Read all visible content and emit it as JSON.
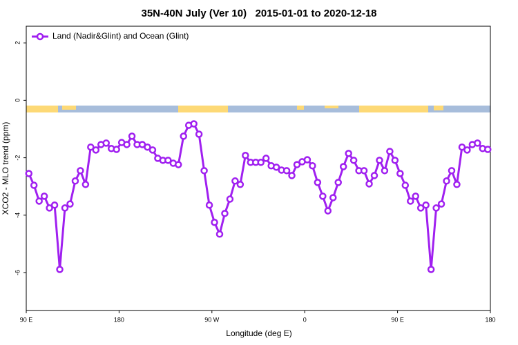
{
  "chart_data": {
    "type": "line",
    "title": "35N-40N July (Ver 10)   2015-01-01 to 2020-12-18",
    "x_label": "Longitude (deg E)",
    "y_label": "XCO2 - MLO trend (ppm)",
    "xlim": [
      90,
      540
    ],
    "ylim": [
      -7.32,
      2.58
    ],
    "xticks": [
      {
        "value": 90,
        "label": "90 E"
      },
      180,
      {
        "value": 270,
        "label": "90 W"
      },
      {
        "value": 360,
        "label": "0"
      },
      {
        "value": 450,
        "label": "90 E"
      },
      {
        "value": 540,
        "label": "180"
      }
    ],
    "yticks": [
      -6,
      -4,
      -2,
      0,
      2
    ],
    "legend": "top-left",
    "x": [
      92.5,
      97.5,
      102.5,
      107.5,
      112.5,
      117.5,
      122.5,
      127.5,
      132.5,
      137.5,
      142.5,
      147.5,
      152.5,
      157.5,
      162.5,
      167.5,
      172.5,
      177.5,
      182.5,
      187.5,
      192.5,
      197.5,
      202.5,
      207.5,
      212.5,
      217.5,
      222.5,
      227.5,
      232.5,
      237.5,
      242.5,
      247.5,
      252.5,
      257.5,
      262.5,
      267.5,
      272.5,
      277.5,
      282.5,
      287.5,
      292.5,
      297.5,
      302.5,
      307.5,
      312.5,
      317.5,
      322.5,
      327.5,
      332.5,
      337.5,
      342.5,
      347.5,
      352.5,
      357.5,
      362.5,
      367.5,
      372.5,
      377.5,
      382.5,
      387.5,
      392.5,
      397.5,
      402.5,
      407.5,
      412.5,
      417.5,
      422.5,
      427.5,
      432.5,
      437.5,
      442.5,
      447.5,
      452.5,
      457.5,
      462.5,
      467.5,
      472.5,
      477.5,
      482.5,
      487.5,
      492.5,
      497.5,
      502.5,
      507.5,
      512.5,
      517.5,
      522.5,
      527.5,
      532.5,
      537.5
    ],
    "series": [
      {
        "name": "Land (Nadir&Glint) and Ocean (Glint)",
        "color": "#a020f0",
        "values": [
          -2.55,
          -2.96,
          -3.51,
          -3.34,
          -3.75,
          -3.65,
          -5.89,
          -3.75,
          -3.61,
          -2.81,
          -2.45,
          -2.93,
          -1.63,
          -1.73,
          -1.54,
          -1.49,
          -1.68,
          -1.71,
          -1.47,
          -1.54,
          -1.25,
          -1.54,
          -1.54,
          -1.63,
          -1.73,
          -2.02,
          -2.09,
          -2.09,
          -2.19,
          -2.24,
          -1.25,
          -0.87,
          -0.82,
          -1.18,
          -2.45,
          -3.65,
          -4.25,
          -4.66,
          -3.94,
          -3.44,
          -2.81,
          -2.93,
          -1.92,
          -2.16,
          -2.16,
          -2.16,
          -2.02,
          -2.28,
          -2.33,
          -2.43,
          -2.45,
          -2.62,
          -2.24,
          -2.14,
          -2.07,
          -2.28,
          -2.86,
          -3.34,
          -3.85,
          -3.39,
          -2.86,
          -2.31,
          -1.85,
          -2.09,
          -2.45,
          -2.45,
          -2.91,
          -2.62,
          -2.09,
          -2.45,
          -1.78,
          -2.09,
          -2.55,
          -2.96,
          -3.51,
          -3.34,
          -3.75,
          -3.65,
          -5.89,
          -3.75,
          -3.61,
          -2.81,
          -2.45,
          -2.93,
          -1.63,
          -1.73,
          -1.54,
          -1.49,
          -1.68,
          -1.71
        ]
      }
    ]
  }
}
